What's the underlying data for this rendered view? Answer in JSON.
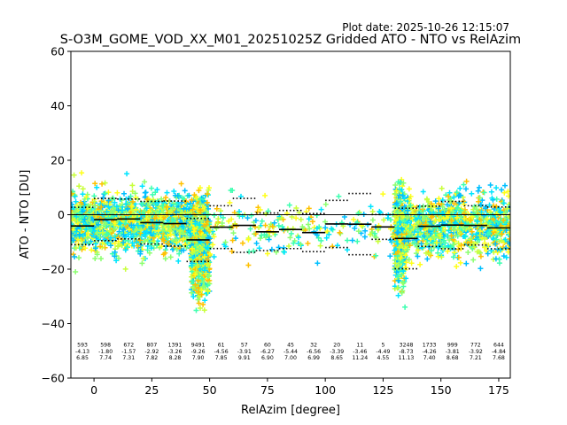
{
  "plot_date": "Plot date: 2025-10-26 12:15:07",
  "chart_data": {
    "type": "scatter",
    "title": "S-O3M_GOME_VOD_XX_M01_20251025Z Gridded ATO - NTO vs RelAzim",
    "xlabel": "RelAzim [degree]",
    "ylabel": "ATO - NTO [DU]",
    "xlim": [
      -10,
      180
    ],
    "ylim": [
      -60,
      60
    ],
    "xticks": [
      0,
      25,
      50,
      75,
      100,
      125,
      150,
      175
    ],
    "yticks": [
      -60,
      -40,
      -20,
      0,
      20,
      40,
      60
    ],
    "grid": false,
    "zero_line": 0,
    "bins": [
      {
        "x": -5,
        "count": "593",
        "mean": "-4.13",
        "std": "6.85"
      },
      {
        "x": 5,
        "count": "598",
        "mean": "-1.80",
        "std": "7.74"
      },
      {
        "x": 15,
        "count": "672",
        "mean": "-1.57",
        "std": "7.31"
      },
      {
        "x": 25,
        "count": "807",
        "mean": "-2.92",
        "std": "7.82"
      },
      {
        "x": 35,
        "count": "1391",
        "mean": "-3.26",
        "std": "8.28"
      },
      {
        "x": 45,
        "count": "9491",
        "mean": "-9.26",
        "std": "7.90"
      },
      {
        "x": 55,
        "count": "61",
        "mean": "-4.56",
        "std": "7.85"
      },
      {
        "x": 65,
        "count": "57",
        "mean": "-3.91",
        "std": "9.91"
      },
      {
        "x": 75,
        "count": "60",
        "mean": "-6.27",
        "std": "6.90"
      },
      {
        "x": 85,
        "count": "45",
        "mean": "-5.44",
        "std": "7.00"
      },
      {
        "x": 95,
        "count": "32",
        "mean": "-6.56",
        "std": "6.99"
      },
      {
        "x": 105,
        "count": "20",
        "mean": "-3.39",
        "std": "8.65"
      },
      {
        "x": 115,
        "count": "11",
        "mean": "-3.46",
        "std": "11.24"
      },
      {
        "x": 125,
        "count": "5",
        "mean": "-4.49",
        "std": "4.55"
      },
      {
        "x": 135,
        "count": "3248",
        "mean": "-8.73",
        "std": "11.13"
      },
      {
        "x": 145,
        "count": "1733",
        "mean": "-4.26",
        "std": "7.40"
      },
      {
        "x": 155,
        "count": "999",
        "mean": "-3.81",
        "std": "8.68"
      },
      {
        "x": 165,
        "count": "772",
        "mean": "-3.92",
        "std": "7.21"
      },
      {
        "x": 175,
        "count": "644",
        "mean": "-4.84",
        "std": "7.68"
      }
    ],
    "point_clusters": [
      {
        "x": [
          -10,
          50
        ],
        "y_center": -3,
        "y_spread": 9,
        "count": 1500
      },
      {
        "x": [
          42,
          50
        ],
        "y_center": -16,
        "y_spread": 12,
        "count": 500
      },
      {
        "x": [
          50,
          130
        ],
        "y_center": -5,
        "y_spread": 8,
        "count": 220
      },
      {
        "x": [
          130,
          135
        ],
        "y_center": -8,
        "y_spread": 14,
        "count": 450
      },
      {
        "x": [
          135,
          180
        ],
        "y_center": -4,
        "y_spread": 9,
        "count": 900
      }
    ],
    "colors": [
      "#00bfff",
      "#3dffb0",
      "#8cff70",
      "#c8ff3a",
      "#ffff1a",
      "#ffc000",
      "#00e5ff"
    ]
  }
}
